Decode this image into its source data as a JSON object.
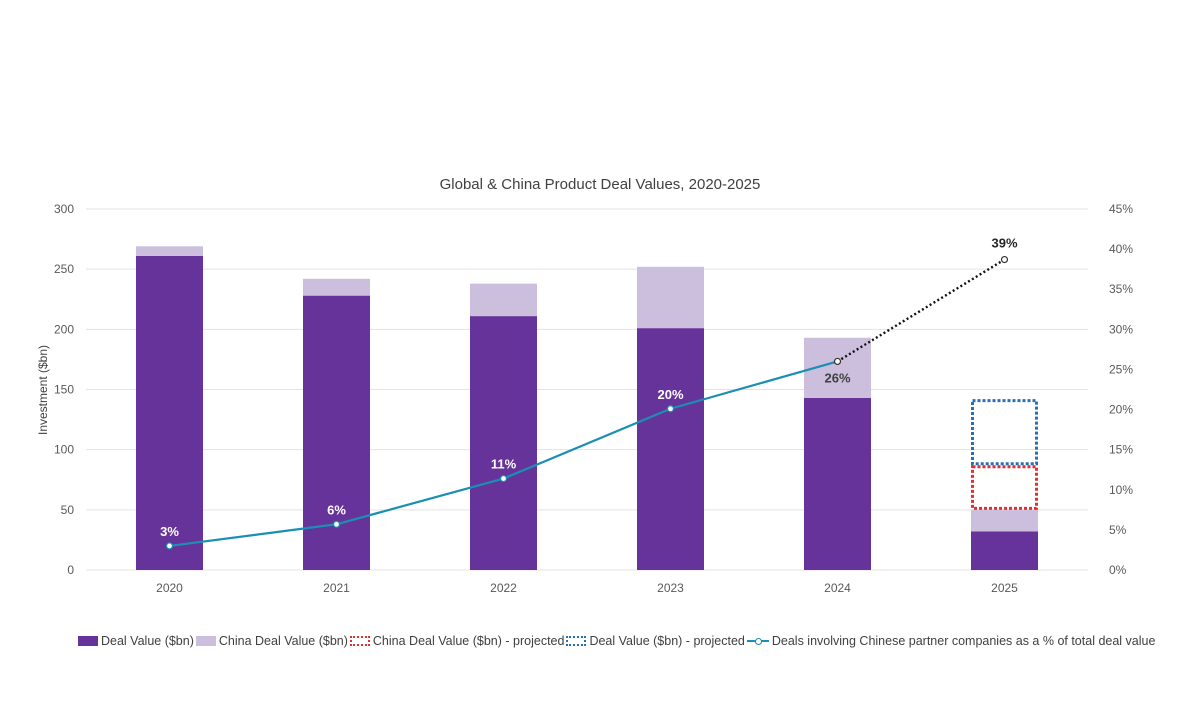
{
  "chart_data": {
    "type": "bar",
    "title": "Global & China Product Deal Values, 2020-2025",
    "categories": [
      "2020",
      "2021",
      "2022",
      "2023",
      "2024",
      "2025"
    ],
    "ylabel": "Investment ($bn)",
    "ylim": [
      0,
      300
    ],
    "y_ticks": [
      "0",
      "50",
      "100",
      "150",
      "200",
      "250",
      "300"
    ],
    "y2lim": [
      0,
      45
    ],
    "y2_ticks": [
      "0%",
      "5%",
      "10%",
      "15%",
      "20%",
      "25%",
      "30%",
      "35%",
      "40%",
      "45%"
    ],
    "grid": true,
    "legend_position": "bottom",
    "series": [
      {
        "name": "Deal Value ($bn)",
        "kind": "bar-stacked",
        "color": "#66339a",
        "values": [
          261,
          228,
          211,
          201,
          143,
          32
        ]
      },
      {
        "name": "China Deal Value ($bn)",
        "kind": "bar-stacked",
        "color": "#cbbfdd",
        "values": [
          8,
          14,
          27,
          51,
          50,
          18
        ]
      },
      {
        "name": "China Deal Value ($bn) - projected",
        "kind": "bar-stacked-projected",
        "color": "#e03030",
        "values": [
          null,
          null,
          null,
          null,
          null,
          37
        ]
      },
      {
        "name": "Deal Value ($bn) - projected",
        "kind": "bar-stacked-projected",
        "color": "#2a6fb5",
        "values": [
          null,
          null,
          null,
          null,
          null,
          55
        ]
      },
      {
        "name": "Deals involving Chinese partner companies as a % of total deal value",
        "kind": "line",
        "axis": "right",
        "color": "#1a8fb3",
        "values": [
          3,
          5.7,
          11.4,
          20.1,
          26,
          38.7
        ],
        "labels": [
          "3%",
          "6%",
          "11%",
          "20%",
          "26%",
          "39%"
        ],
        "projected_from_index": 4
      }
    ]
  }
}
